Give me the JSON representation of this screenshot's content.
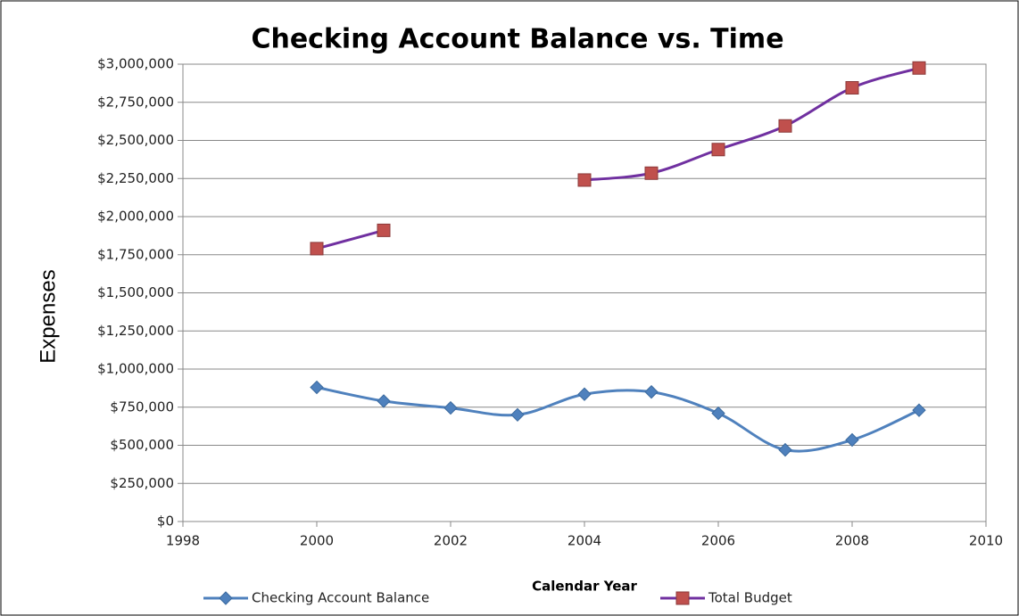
{
  "chart_data": {
    "type": "line",
    "title": "Checking Account Balance vs. Time",
    "x_label": "Calendar Year",
    "y_label": "Expenses",
    "x": [
      2000,
      2001,
      2002,
      2003,
      2004,
      2005,
      2006,
      2007,
      2008,
      2009
    ],
    "series": [
      {
        "name": "Checking Account Balance",
        "color": "#4f81bd",
        "marker": "diamond",
        "values": [
          880000,
          790000,
          745000,
          700000,
          835000,
          850000,
          710000,
          470000,
          535000,
          730000
        ]
      },
      {
        "name": "Total Budget",
        "color": "#7030a0",
        "marker": "square",
        "marker_color": "#c0504d",
        "values": [
          1790000,
          1910000,
          null,
          null,
          2240000,
          2285000,
          2440000,
          2595000,
          2845000,
          2975000
        ]
      }
    ],
    "xlim": [
      1998,
      2010
    ],
    "xticks": [
      1998,
      2000,
      2002,
      2004,
      2006,
      2008,
      2010
    ],
    "ylim": [
      0,
      3000000
    ],
    "yticks": [
      {
        "value": 0,
        "label": "$0"
      },
      {
        "value": 250000,
        "label": "$250,000"
      },
      {
        "value": 500000,
        "label": "$500,000"
      },
      {
        "value": 750000,
        "label": "$750,000"
      },
      {
        "value": 1000000,
        "label": "$1,000,000"
      },
      {
        "value": 1250000,
        "label": "$1,250,000"
      },
      {
        "value": 1500000,
        "label": "$1,500,000"
      },
      {
        "value": 1750000,
        "label": "$1,750,000"
      },
      {
        "value": 2000000,
        "label": "$2,000,000"
      },
      {
        "value": 2250000,
        "label": "$2,250,000"
      },
      {
        "value": 2500000,
        "label": "$2,500,000"
      },
      {
        "value": 2750000,
        "label": "$2,750,000"
      },
      {
        "value": 3000000,
        "label": "$3,000,000"
      }
    ],
    "grid": true,
    "smooth": true,
    "legend": "bottom"
  }
}
